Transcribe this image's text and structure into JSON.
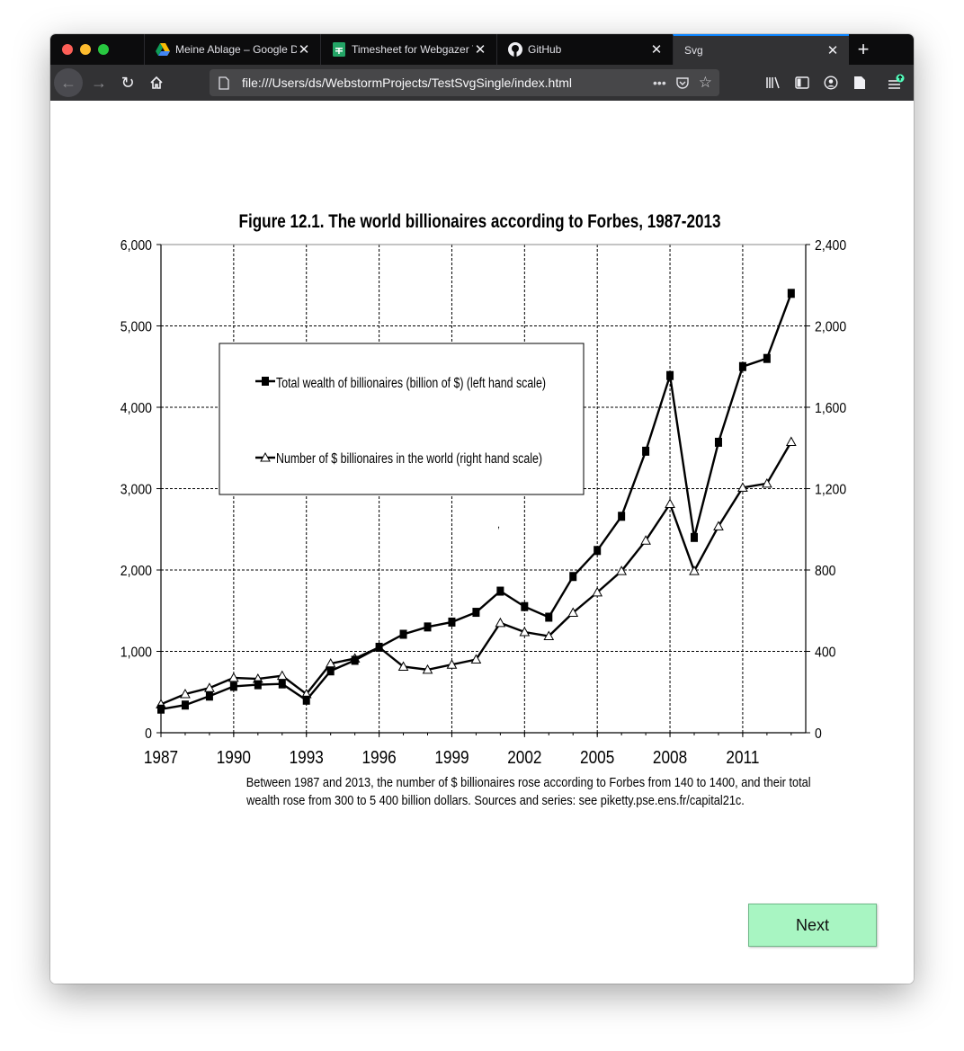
{
  "browser": {
    "tabs": [
      {
        "label": "Meine Ablage – Google Dr",
        "icon": "google-drive-icon",
        "active": false
      },
      {
        "label": "Timesheet for Webgazer T",
        "icon": "google-sheets-icon",
        "active": false
      },
      {
        "label": "GitHub",
        "icon": "github-icon",
        "active": false
      },
      {
        "label": "Svg",
        "icon": "",
        "active": true
      }
    ],
    "url": "file:///Users/ds/WebstormProjects/TestSvgSingle/index.html",
    "accent_color": "#0a84ff"
  },
  "chart_data": {
    "type": "line",
    "title": "Figure 12.1. The world billionaires according to Forbes, 1987-2013",
    "x": [
      1987,
      1988,
      1989,
      1990,
      1991,
      1992,
      1993,
      1994,
      1995,
      1996,
      1997,
      1998,
      1999,
      2000,
      2001,
      2002,
      2003,
      2004,
      2005,
      2006,
      2007,
      2008,
      2009,
      2010,
      2011,
      2012,
      2013
    ],
    "x_ticks": [
      1987,
      1990,
      1993,
      1996,
      1999,
      2002,
      2005,
      2008,
      2011
    ],
    "x_tick_labels": [
      "1987",
      "1990",
      "1993",
      "1996",
      "1999",
      "2002",
      "2005",
      "2008",
      "2011"
    ],
    "xlim": [
      1987,
      2013.6
    ],
    "y_left": {
      "lim": [
        0,
        6000
      ],
      "ticks": [
        0,
        1000,
        2000,
        3000,
        4000,
        5000,
        6000
      ],
      "tick_labels": [
        "0",
        "1,000",
        "2,000",
        "3,000",
        "4,000",
        "5,000",
        "6,000"
      ]
    },
    "y_right": {
      "lim": [
        0,
        2400
      ],
      "ticks": [
        0,
        400,
        800,
        1200,
        1600,
        2000,
        2400
      ],
      "tick_labels": [
        "0",
        "400",
        "800",
        "1,200",
        "1,600",
        "2,000",
        "2,400"
      ]
    },
    "grid": true,
    "legend_position": "upper-left inside",
    "series": [
      {
        "name": "Total wealth of billionaires (billion of $) (left hand scale)",
        "axis": "left",
        "marker": "square",
        "values": [
          290,
          340,
          450,
          570,
          590,
          600,
          400,
          760,
          890,
          1050,
          1210,
          1300,
          1360,
          1480,
          1740,
          1550,
          1420,
          1920,
          2240,
          2660,
          3460,
          4390,
          2400,
          3570,
          4500,
          4600,
          5400
        ]
      },
      {
        "name": "Number of $ billionaires in the world (right hand scale)",
        "axis": "right",
        "marker": "triangle",
        "values": [
          140,
          190,
          220,
          270,
          265,
          280,
          190,
          340,
          365,
          420,
          325,
          310,
          335,
          360,
          540,
          495,
          475,
          590,
          690,
          795,
          945,
          1125,
          795,
          1015,
          1205,
          1225,
          1430
        ]
      }
    ],
    "caption_lines": [
      "Between 1987 and 2013, the number of $ billionaires rose according to Forbes from 140 to 1400, and their total",
      "wealth rose from 300 to 5 400 billion dollars. Sources and series: see piketty.pse.ens.fr/capital21c."
    ],
    "stray_mark": ","
  },
  "next_button": {
    "label": "Next",
    "color": "#a8f5c2"
  }
}
